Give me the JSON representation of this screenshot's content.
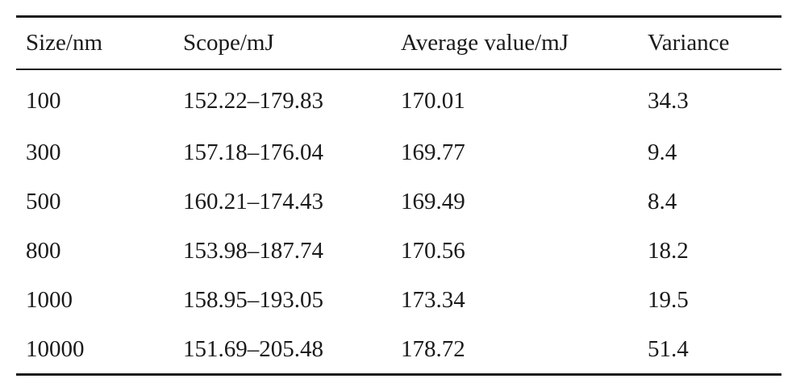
{
  "table": {
    "headers": [
      "Size/nm",
      "Scope/mJ",
      "Average value/mJ",
      "Variance"
    ],
    "rows": [
      [
        "100",
        "152.22–179.83",
        "170.01",
        "34.3"
      ],
      [
        "300",
        "157.18–176.04",
        "169.77",
        "9.4"
      ],
      [
        "500",
        "160.21–174.43",
        "169.49",
        "8.4"
      ],
      [
        "800",
        "153.98–187.74",
        "170.56",
        "18.2"
      ],
      [
        "1000",
        "158.95–193.05",
        "173.34",
        "19.5"
      ],
      [
        "10000",
        "151.69–205.48",
        "178.72",
        "51.4"
      ]
    ]
  }
}
